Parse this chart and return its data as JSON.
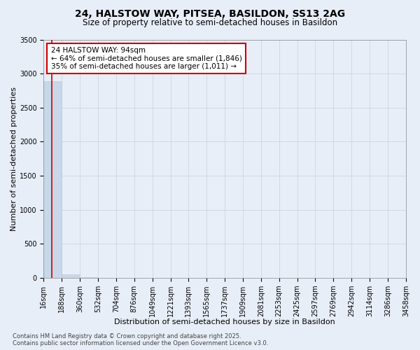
{
  "title_line1": "24, HALSTOW WAY, PITSEA, BASILDON, SS13 2AG",
  "title_line2": "Size of property relative to semi-detached houses in Basildon",
  "xlabel": "Distribution of semi-detached houses by size in Basildon",
  "ylabel": "Number of semi-detached properties",
  "property_size": 94,
  "annotation_text": "24 HALSTOW WAY: 94sqm\n← 64% of semi-detached houses are smaller (1,846)\n35% of semi-detached houses are larger (1,011) →",
  "bar_color": "#c8d8e8",
  "bar_edge_color": "#b0c8e0",
  "red_line_color": "#cc0000",
  "grid_color": "#c8d0dc",
  "background_color": "#e8eef8",
  "bin_edges": [
    16,
    188,
    360,
    532,
    704,
    876,
    1049,
    1221,
    1393,
    1565,
    1737,
    1909,
    2081,
    2253,
    2425,
    2597,
    2769,
    2942,
    3114,
    3286,
    3458
  ],
  "bin_labels": [
    "16sqm",
    "188sqm",
    "360sqm",
    "532sqm",
    "704sqm",
    "876sqm",
    "1049sqm",
    "1221sqm",
    "1393sqm",
    "1565sqm",
    "1737sqm",
    "1909sqm",
    "2081sqm",
    "2253sqm",
    "2425sqm",
    "2597sqm",
    "2769sqm",
    "2942sqm",
    "3114sqm",
    "3286sqm",
    "3458sqm"
  ],
  "bar_heights": [
    2890,
    50,
    5,
    3,
    2,
    1,
    1,
    0,
    1,
    1,
    0,
    0,
    0,
    0,
    0,
    0,
    0,
    0,
    0,
    0
  ],
  "ylim": [
    0,
    3500
  ],
  "yticks": [
    0,
    500,
    1000,
    1500,
    2000,
    2500,
    3000,
    3500
  ],
  "footnote": "Contains HM Land Registry data © Crown copyright and database right 2025.\nContains public sector information licensed under the Open Government Licence v3.0.",
  "title_fontsize": 10,
  "subtitle_fontsize": 8.5,
  "axis_label_fontsize": 8,
  "tick_fontsize": 7,
  "annotation_fontsize": 7.5,
  "footnote_fontsize": 6
}
